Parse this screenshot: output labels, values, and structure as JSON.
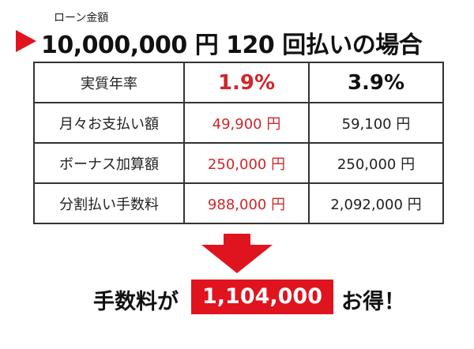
{
  "header": {
    "label": "ローン金額",
    "title": "10,000,000 円 120 回払いの場合"
  },
  "table": {
    "rows": [
      [
        "実質年率",
        "1.9%",
        "3.9%"
      ],
      [
        "月々お支払い額",
        "49,900 円",
        "59,100 円"
      ],
      [
        "ボーナス加算額",
        "250,000 円",
        "250,000 円"
      ],
      [
        "分割払い手数料",
        "988,000 円",
        "2,092,000 円"
      ]
    ]
  },
  "footer": {
    "prefix": "手数料が",
    "amount": "1,104,000 円",
    "suffix": "お得！"
  }
}
